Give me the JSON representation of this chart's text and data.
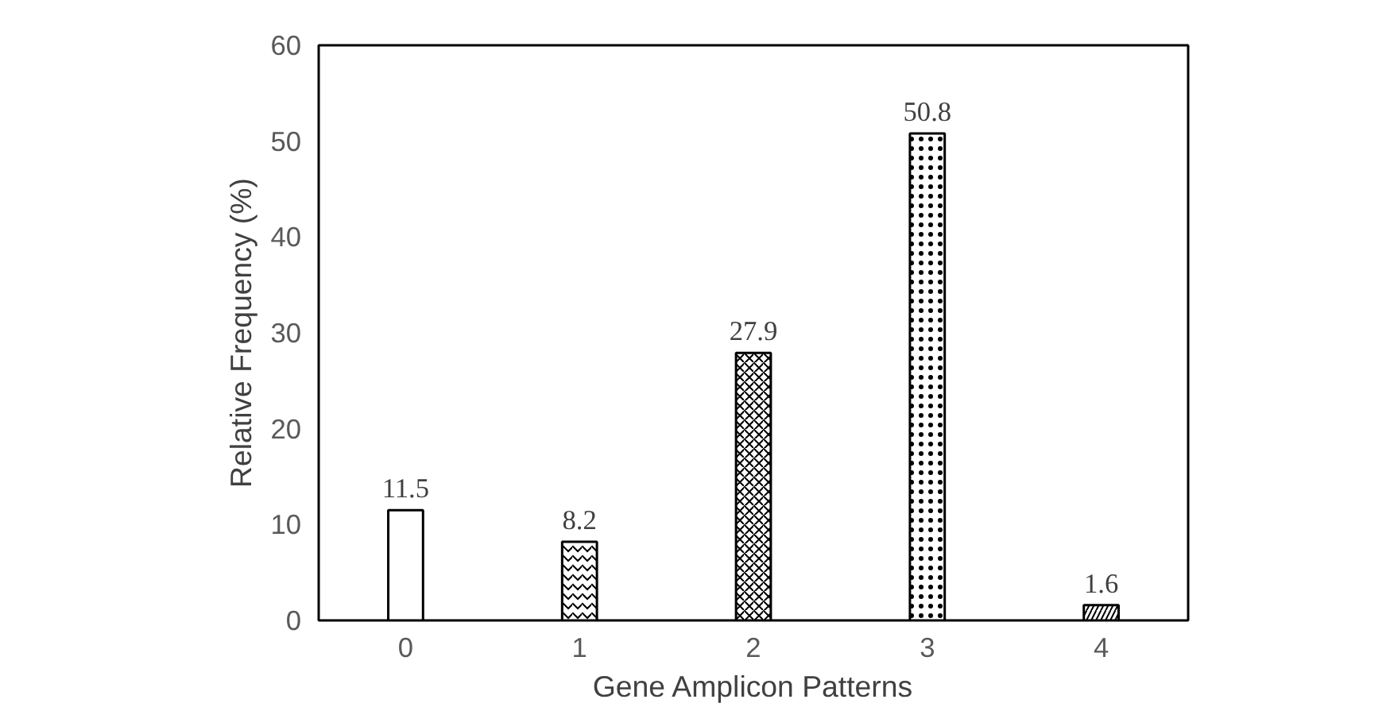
{
  "chart_data": {
    "type": "bar",
    "xlabel": "Gene Amplicon Patterns",
    "ylabel": "Relative Frequency (%)",
    "categories": [
      "0",
      "1",
      "2",
      "3",
      "4"
    ],
    "values": [
      11.5,
      8.2,
      27.9,
      50.8,
      1.6
    ],
    "colors": [
      "#ffffff",
      "#ffffff",
      "#ffffff",
      "#ffffff",
      "#ffffff"
    ],
    "ylim": [
      0,
      60
    ],
    "yticks": [
      0,
      10,
      20,
      30,
      40,
      50,
      60
    ],
    "grid": false,
    "data_labels": true
  }
}
